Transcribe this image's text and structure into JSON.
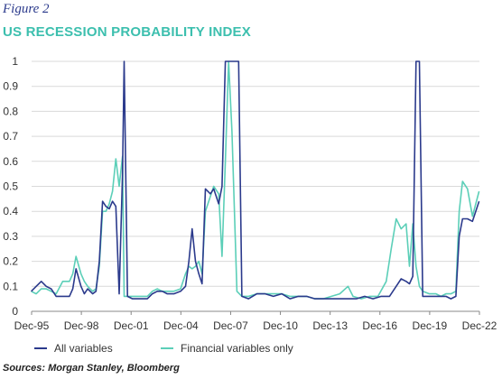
{
  "figure_label": "Figure 2",
  "title": "US RECESSION PROBABILITY INDEX",
  "source": "Sources: Morgan Stanley, Bloomberg",
  "colors": {
    "all_variables": "#2b3a8c",
    "financial_only": "#5ccfb8",
    "title": "#3cbfae",
    "gridline": "#d9d9d9"
  },
  "chart_data": {
    "type": "line",
    "title": "",
    "xlabel": "",
    "ylabel": "",
    "ylim": [
      0,
      1
    ],
    "grid": true,
    "legend_placement": "bottom",
    "y_ticks": [
      "0",
      "0.1",
      "0.2",
      "0.3",
      "0.4",
      "0.5",
      "0.6",
      "0.7",
      "0.8",
      "0.9",
      "1"
    ],
    "x_ticks": [
      {
        "label": "Dec-95",
        "x": 1995.92
      },
      {
        "label": "Dec-98",
        "x": 1998.92
      },
      {
        "label": "Dec-01",
        "x": 2001.92
      },
      {
        "label": "Dec-04",
        "x": 2004.92
      },
      {
        "label": "Dec-07",
        "x": 2007.92
      },
      {
        "label": "Dec-10",
        "x": 2010.92
      },
      {
        "label": "Dec-13",
        "x": 2013.92
      },
      {
        "label": "Dec-16",
        "x": 2016.92
      },
      {
        "label": "Dec-19",
        "x": 2019.92
      },
      {
        "label": "Dec-22",
        "x": 2022.92
      }
    ],
    "xlim": [
      1995.92,
      2022.92
    ],
    "series": [
      {
        "name": "All variables",
        "points": [
          [
            1995.9,
            0.08
          ],
          [
            1996.2,
            0.1
          ],
          [
            1996.5,
            0.12
          ],
          [
            1996.8,
            0.1
          ],
          [
            1997.1,
            0.09
          ],
          [
            1997.4,
            0.06
          ],
          [
            1997.8,
            0.06
          ],
          [
            1998.2,
            0.06
          ],
          [
            1998.4,
            0.09
          ],
          [
            1998.6,
            0.17
          ],
          [
            1998.9,
            0.1
          ],
          [
            1999.1,
            0.07
          ],
          [
            1999.3,
            0.09
          ],
          [
            1999.6,
            0.07
          ],
          [
            1999.8,
            0.08
          ],
          [
            2000.0,
            0.2
          ],
          [
            2000.2,
            0.44
          ],
          [
            2000.4,
            0.42
          ],
          [
            2000.6,
            0.41
          ],
          [
            2000.8,
            0.44
          ],
          [
            2001.0,
            0.42
          ],
          [
            2001.2,
            0.07
          ],
          [
            2001.4,
            0.55
          ],
          [
            2001.5,
            1.0
          ],
          [
            2001.7,
            0.06
          ],
          [
            2002.0,
            0.05
          ],
          [
            2002.5,
            0.05
          ],
          [
            2002.9,
            0.05
          ],
          [
            2003.2,
            0.07
          ],
          [
            2003.5,
            0.08
          ],
          [
            2003.8,
            0.08
          ],
          [
            2004.1,
            0.07
          ],
          [
            2004.5,
            0.07
          ],
          [
            2004.9,
            0.08
          ],
          [
            2005.2,
            0.1
          ],
          [
            2005.4,
            0.2
          ],
          [
            2005.6,
            0.33
          ],
          [
            2005.8,
            0.2
          ],
          [
            2006.0,
            0.15
          ],
          [
            2006.2,
            0.11
          ],
          [
            2006.4,
            0.49
          ],
          [
            2006.7,
            0.47
          ],
          [
            2006.9,
            0.49
          ],
          [
            2007.2,
            0.43
          ],
          [
            2007.4,
            0.5
          ],
          [
            2007.6,
            1.0
          ],
          [
            2008.0,
            1.0
          ],
          [
            2008.4,
            1.0
          ],
          [
            2008.6,
            0.06
          ],
          [
            2009.0,
            0.05
          ],
          [
            2009.5,
            0.07
          ],
          [
            2010.0,
            0.07
          ],
          [
            2010.5,
            0.06
          ],
          [
            2011.0,
            0.07
          ],
          [
            2011.5,
            0.05
          ],
          [
            2012.0,
            0.06
          ],
          [
            2012.5,
            0.06
          ],
          [
            2013.0,
            0.05
          ],
          [
            2013.5,
            0.05
          ],
          [
            2014.0,
            0.05
          ],
          [
            2014.5,
            0.05
          ],
          [
            2015.0,
            0.05
          ],
          [
            2015.5,
            0.05
          ],
          [
            2016.0,
            0.06
          ],
          [
            2016.5,
            0.05
          ],
          [
            2017.0,
            0.06
          ],
          [
            2017.5,
            0.06
          ],
          [
            2017.9,
            0.1
          ],
          [
            2018.2,
            0.13
          ],
          [
            2018.5,
            0.12
          ],
          [
            2018.7,
            0.11
          ],
          [
            2018.9,
            0.14
          ],
          [
            2019.1,
            1.0
          ],
          [
            2019.3,
            1.0
          ],
          [
            2019.5,
            0.06
          ],
          [
            2019.9,
            0.06
          ],
          [
            2020.3,
            0.06
          ],
          [
            2020.6,
            0.06
          ],
          [
            2020.9,
            0.06
          ],
          [
            2021.2,
            0.05
          ],
          [
            2021.5,
            0.06
          ],
          [
            2021.7,
            0.3
          ],
          [
            2021.9,
            0.37
          ],
          [
            2022.2,
            0.37
          ],
          [
            2022.5,
            0.36
          ],
          [
            2022.9,
            0.44
          ]
        ]
      },
      {
        "name": "Financial variables only",
        "points": [
          [
            1995.9,
            0.08
          ],
          [
            1996.2,
            0.07
          ],
          [
            1996.5,
            0.09
          ],
          [
            1996.8,
            0.09
          ],
          [
            1997.1,
            0.08
          ],
          [
            1997.4,
            0.07
          ],
          [
            1997.8,
            0.12
          ],
          [
            1998.2,
            0.12
          ],
          [
            1998.4,
            0.15
          ],
          [
            1998.6,
            0.22
          ],
          [
            1998.9,
            0.15
          ],
          [
            1999.1,
            0.12
          ],
          [
            1999.3,
            0.1
          ],
          [
            1999.6,
            0.08
          ],
          [
            1999.8,
            0.09
          ],
          [
            2000.0,
            0.18
          ],
          [
            2000.2,
            0.4
          ],
          [
            2000.4,
            0.4
          ],
          [
            2000.6,
            0.43
          ],
          [
            2000.8,
            0.48
          ],
          [
            2001.0,
            0.61
          ],
          [
            2001.2,
            0.5
          ],
          [
            2001.4,
            0.62
          ],
          [
            2001.5,
            0.06
          ],
          [
            2001.7,
            0.06
          ],
          [
            2002.0,
            0.06
          ],
          [
            2002.5,
            0.06
          ],
          [
            2002.9,
            0.06
          ],
          [
            2003.2,
            0.08
          ],
          [
            2003.5,
            0.09
          ],
          [
            2003.8,
            0.08
          ],
          [
            2004.1,
            0.08
          ],
          [
            2004.5,
            0.08
          ],
          [
            2004.9,
            0.09
          ],
          [
            2005.2,
            0.15
          ],
          [
            2005.4,
            0.18
          ],
          [
            2005.6,
            0.17
          ],
          [
            2005.8,
            0.18
          ],
          [
            2006.0,
            0.2
          ],
          [
            2006.2,
            0.15
          ],
          [
            2006.4,
            0.4
          ],
          [
            2006.7,
            0.46
          ],
          [
            2006.9,
            0.5
          ],
          [
            2007.2,
            0.47
          ],
          [
            2007.4,
            0.22
          ],
          [
            2007.6,
            0.6
          ],
          [
            2007.8,
            1.0
          ],
          [
            2008.0,
            0.72
          ],
          [
            2008.3,
            0.08
          ],
          [
            2008.6,
            0.06
          ],
          [
            2009.0,
            0.06
          ],
          [
            2009.5,
            0.07
          ],
          [
            2010.0,
            0.07
          ],
          [
            2010.5,
            0.07
          ],
          [
            2011.0,
            0.07
          ],
          [
            2011.5,
            0.06
          ],
          [
            2012.0,
            0.06
          ],
          [
            2012.5,
            0.06
          ],
          [
            2013.0,
            0.05
          ],
          [
            2013.5,
            0.05
          ],
          [
            2014.0,
            0.06
          ],
          [
            2014.5,
            0.07
          ],
          [
            2015.0,
            0.1
          ],
          [
            2015.3,
            0.06
          ],
          [
            2015.8,
            0.05
          ],
          [
            2016.3,
            0.06
          ],
          [
            2016.8,
            0.06
          ],
          [
            2017.3,
            0.12
          ],
          [
            2017.6,
            0.25
          ],
          [
            2017.9,
            0.37
          ],
          [
            2018.2,
            0.33
          ],
          [
            2018.5,
            0.35
          ],
          [
            2018.7,
            0.18
          ],
          [
            2018.9,
            0.35
          ],
          [
            2019.1,
            0.18
          ],
          [
            2019.3,
            0.1
          ],
          [
            2019.5,
            0.08
          ],
          [
            2019.9,
            0.07
          ],
          [
            2020.3,
            0.07
          ],
          [
            2020.6,
            0.06
          ],
          [
            2020.9,
            0.07
          ],
          [
            2021.2,
            0.07
          ],
          [
            2021.5,
            0.08
          ],
          [
            2021.7,
            0.4
          ],
          [
            2021.9,
            0.52
          ],
          [
            2022.2,
            0.49
          ],
          [
            2022.5,
            0.38
          ],
          [
            2022.9,
            0.48
          ]
        ]
      }
    ]
  }
}
